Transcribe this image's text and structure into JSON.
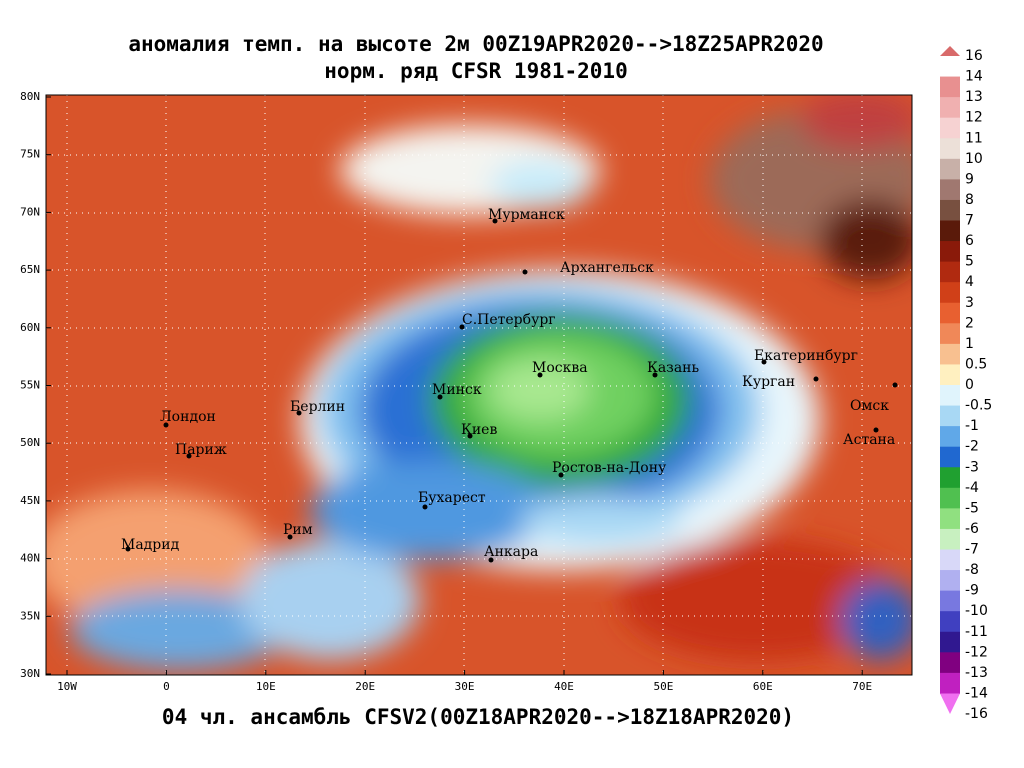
{
  "header": {
    "title_line1": "аномалия темп. на высоте 2м 00Z19APR2020-->18Z25APR2020",
    "title_line2": "норм. ряд CFSR 1981-2010"
  },
  "footer": "04 чл. ансамбль CFSV2(00Z18APR2020-->18Z18APR2020)",
  "map": {
    "lon_labels": [
      "10W",
      "0",
      "10E",
      "20E",
      "30E",
      "40E",
      "50E",
      "60E",
      "70E"
    ],
    "lat_labels": [
      "30N",
      "35N",
      "40N",
      "45N",
      "50N",
      "55N",
      "60N",
      "65N",
      "70N",
      "75N",
      "80N"
    ],
    "cities": [
      "Мурманск",
      "Архангельск",
      "С.Петербург",
      "Москва",
      "Казань",
      "Екатеринбург",
      "Курган",
      "Омск",
      "Астана",
      "Минск",
      "Берлин",
      "Киев",
      "Лондон",
      "Париж",
      "Ростов-на-Дону",
      "Бухарест",
      "Рим",
      "Мадрид",
      "Анкара"
    ]
  },
  "legend": {
    "labels": [
      "16",
      "14",
      "13",
      "12",
      "11",
      "10",
      "9",
      "8",
      "7",
      "6",
      "5",
      "4",
      "3",
      "2",
      "1",
      "0.5",
      "0",
      "-0.5",
      "-1",
      "-2",
      "-3",
      "-4",
      "-5",
      "-6",
      "-7",
      "-8",
      "-9",
      "-10",
      "-11",
      "-12",
      "-13",
      "-14",
      "-16"
    ]
  }
}
